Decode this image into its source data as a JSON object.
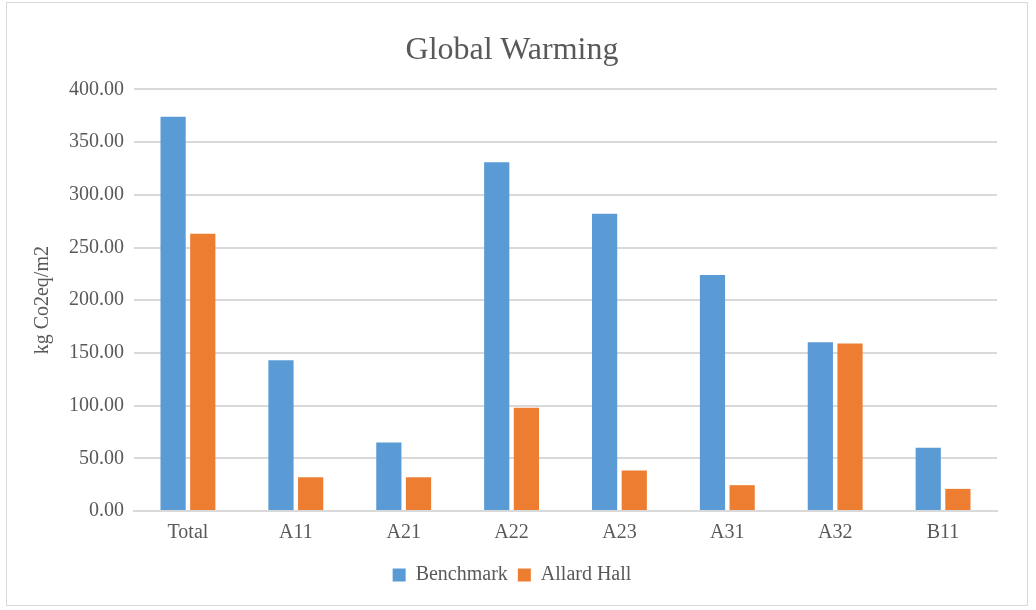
{
  "chart_data": {
    "type": "bar",
    "title": "Global Warming",
    "ylabel": "kg Co2eq/m2",
    "categories": [
      "Total",
      "A11",
      "A21",
      "A22",
      "A23",
      "A31",
      "A32",
      "B11"
    ],
    "series": [
      {
        "name": "Benchmark",
        "color": "#5b9bd5",
        "values": [
          374,
          143,
          65,
          331,
          282,
          224,
          160,
          60
        ]
      },
      {
        "name": "Allard Hall",
        "color": "#ed7d31",
        "values": [
          263,
          32,
          32,
          98,
          38.5,
          24.5,
          159,
          21
        ]
      }
    ],
    "ylim": [
      0,
      400
    ],
    "yticks": [
      {
        "value": 0,
        "label": "0.00"
      },
      {
        "value": 50,
        "label": "50.00"
      },
      {
        "value": 100,
        "label": "100.00"
      },
      {
        "value": 150,
        "label": "150.00"
      },
      {
        "value": 200,
        "label": "200.00"
      },
      {
        "value": 250,
        "label": "250.00"
      },
      {
        "value": 300,
        "label": "300.00"
      },
      {
        "value": 350,
        "label": "350.00"
      },
      {
        "value": 400,
        "label": "400.00"
      }
    ],
    "grid": "y",
    "legend": "bottom"
  }
}
